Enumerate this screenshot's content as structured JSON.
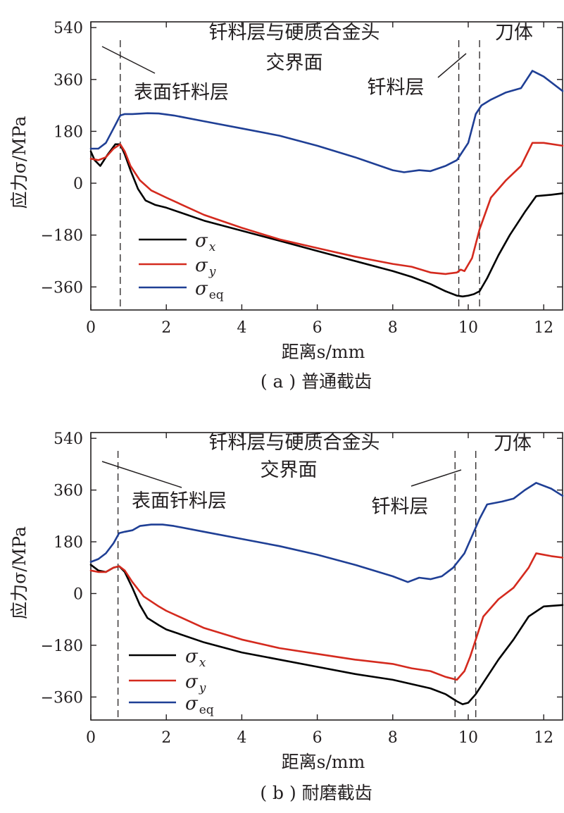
{
  "chart_data": [
    {
      "type": "line",
      "caption": "( a ) 普通截齿",
      "ylabel": "应力σ/MPa",
      "xlabel": "距离s/mm",
      "xlim": [
        0,
        12.5
      ],
      "ylim": [
        -440,
        560
      ],
      "xticks": [
        0,
        2,
        4,
        6,
        8,
        10,
        12
      ],
      "yticks": [
        540,
        360,
        180,
        0,
        -180,
        -360
      ],
      "ytick_labels": [
        "540",
        "360",
        "180",
        "0",
        "−180",
        "−360"
      ],
      "grid": false,
      "legend_position": "lower-left",
      "annotations": {
        "interface": [
          "钎料层与硬质合金头",
          "交界面"
        ],
        "surface_braze": "表面钎料层",
        "braze": "钎料层",
        "body": "刀体"
      },
      "vlines": [
        {
          "x": 0.78,
          "style": "dashed"
        },
        {
          "x": 9.75,
          "style": "dashed"
        },
        {
          "x": 10.3,
          "style": "dashed"
        }
      ],
      "series": [
        {
          "name": "σx",
          "sym": "σ",
          "sub": "x",
          "color": "#000000",
          "x": [
            0,
            0.1,
            0.25,
            0.45,
            0.65,
            0.78,
            0.9,
            1.05,
            1.25,
            1.45,
            1.7,
            2,
            3,
            4,
            5,
            6,
            7,
            8,
            8.5,
            9,
            9.4,
            9.7,
            9.85,
            10,
            10.15,
            10.3,
            10.5,
            10.8,
            11.1,
            11.5,
            11.8,
            12.2,
            12.5
          ],
          "y": [
            110,
            80,
            60,
            100,
            135,
            135,
            100,
            45,
            -20,
            -60,
            -75,
            -85,
            -130,
            -165,
            -200,
            -235,
            -270,
            -305,
            -325,
            -350,
            -375,
            -390,
            -393,
            -390,
            -385,
            -375,
            -330,
            -250,
            -180,
            -100,
            -45,
            -40,
            -35
          ]
        },
        {
          "name": "σy",
          "sym": "σ",
          "sub": "y",
          "color": "#d42a1e",
          "x": [
            0,
            0.2,
            0.4,
            0.6,
            0.78,
            0.9,
            1.05,
            1.3,
            1.6,
            2,
            3,
            4,
            5,
            6,
            7,
            8,
            8.5,
            9,
            9.4,
            9.7,
            9.8,
            9.9,
            10.1,
            10.3,
            10.6,
            11,
            11.4,
            11.7,
            12,
            12.5
          ],
          "y": [
            85,
            80,
            90,
            120,
            135,
            110,
            60,
            10,
            -25,
            -50,
            -110,
            -155,
            -195,
            -225,
            -255,
            -280,
            -290,
            -310,
            -315,
            -310,
            -300,
            -305,
            -260,
            -160,
            -50,
            10,
            60,
            140,
            140,
            130
          ]
        },
        {
          "name": "σeq",
          "sym": "σ",
          "sub": "eq",
          "color": "#1f3f95",
          "x": [
            0,
            0.2,
            0.4,
            0.6,
            0.78,
            0.9,
            1.1,
            1.5,
            1.8,
            2.2,
            3,
            4,
            5,
            6,
            7,
            8,
            8.3,
            8.7,
            9,
            9.4,
            9.7,
            9.8,
            10,
            10.2,
            10.35,
            10.6,
            11,
            11.4,
            11.7,
            12,
            12.5
          ],
          "y": [
            120,
            120,
            140,
            190,
            235,
            240,
            240,
            243,
            242,
            235,
            215,
            190,
            165,
            130,
            90,
            45,
            38,
            45,
            42,
            60,
            80,
            100,
            140,
            240,
            270,
            290,
            315,
            330,
            390,
            370,
            320
          ]
        }
      ]
    },
    {
      "type": "line",
      "caption": "( b ) 耐磨截齿",
      "ylabel": "应力σ/MPa",
      "xlabel": "距离s/mm",
      "xlim": [
        0,
        12.5
      ],
      "ylim": [
        -440,
        560
      ],
      "xticks": [
        0,
        2,
        4,
        6,
        8,
        10,
        12
      ],
      "yticks": [
        540,
        360,
        180,
        0,
        -180,
        -360
      ],
      "ytick_labels": [
        "540",
        "360",
        "180",
        "0",
        "−180",
        "−360"
      ],
      "grid": false,
      "legend_position": "lower-left",
      "annotations": {
        "interface": [
          "钎料层与硬质合金头",
          "交界面"
        ],
        "surface_braze": "表面钎料层",
        "braze": "钎料层",
        "body": "刀体"
      },
      "vlines": [
        {
          "x": 0.72,
          "style": "dashed"
        },
        {
          "x": 9.65,
          "style": "dashed"
        },
        {
          "x": 10.2,
          "style": "dashed"
        }
      ],
      "series": [
        {
          "name": "σx",
          "sym": "σ",
          "sub": "x",
          "color": "#000000",
          "x": [
            0,
            0.2,
            0.4,
            0.6,
            0.75,
            0.9,
            1.1,
            1.3,
            1.5,
            1.8,
            2,
            3,
            4,
            5,
            6,
            7,
            8,
            8.5,
            9,
            9.4,
            9.7,
            9.85,
            10,
            10.2,
            10.5,
            10.8,
            11.2,
            11.6,
            12,
            12.5
          ],
          "y": [
            100,
            80,
            75,
            90,
            95,
            75,
            20,
            -40,
            -85,
            -110,
            -125,
            -170,
            -205,
            -230,
            -255,
            -280,
            -300,
            -315,
            -330,
            -350,
            -375,
            -385,
            -380,
            -350,
            -290,
            -230,
            -160,
            -80,
            -45,
            -40
          ]
        },
        {
          "name": "σy",
          "sym": "σ",
          "sub": "y",
          "color": "#d42a1e",
          "x": [
            0,
            0.2,
            0.4,
            0.6,
            0.75,
            0.9,
            1.1,
            1.4,
            1.8,
            2,
            3,
            4,
            5,
            6,
            7,
            8,
            8.5,
            9,
            9.4,
            9.7,
            9.9,
            10.05,
            10.2,
            10.4,
            10.8,
            11.2,
            11.6,
            11.8,
            12.2,
            12.5
          ],
          "y": [
            80,
            75,
            75,
            90,
            95,
            80,
            40,
            -10,
            -45,
            -60,
            -120,
            -160,
            -190,
            -210,
            -230,
            -245,
            -260,
            -270,
            -290,
            -300,
            -270,
            -220,
            -160,
            -80,
            -20,
            20,
            90,
            140,
            130,
            125
          ]
        },
        {
          "name": "σeq",
          "sym": "σ",
          "sub": "eq",
          "color": "#1f3f95",
          "x": [
            0,
            0.2,
            0.4,
            0.6,
            0.75,
            0.9,
            1.1,
            1.3,
            1.6,
            1.9,
            2.2,
            3,
            4,
            5,
            6,
            7,
            8,
            8.4,
            8.7,
            9,
            9.3,
            9.6,
            9.9,
            10.1,
            10.3,
            10.5,
            10.9,
            11.2,
            11.5,
            11.8,
            12.2,
            12.5
          ],
          "y": [
            110,
            120,
            140,
            175,
            210,
            215,
            220,
            235,
            240,
            240,
            235,
            215,
            190,
            165,
            135,
            100,
            60,
            40,
            55,
            50,
            60,
            90,
            140,
            200,
            260,
            310,
            320,
            330,
            360,
            385,
            365,
            340
          ]
        }
      ]
    }
  ]
}
